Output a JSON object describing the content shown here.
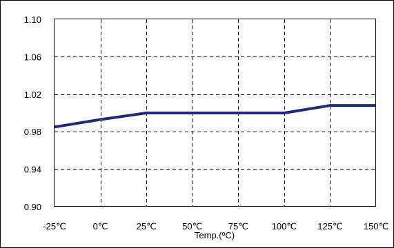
{
  "chart_data": {
    "type": "line",
    "title": "",
    "xlabel": "Temp.(ºC)",
    "ylabel": "",
    "categories": [
      "-25℃",
      "0℃",
      "25℃",
      "50℃",
      "75℃",
      "100℃",
      "125℃",
      "150℃"
    ],
    "x": [
      -25,
      0,
      25,
      50,
      75,
      100,
      125,
      150
    ],
    "xlim": [
      -25,
      150
    ],
    "ylim": [
      0.9,
      1.1
    ],
    "yticks": [
      "0.90",
      "0.94",
      "0.98",
      "1.02",
      "1.06",
      "1.10"
    ],
    "ytick_values": [
      0.9,
      0.94,
      0.98,
      1.02,
      1.06,
      1.1
    ],
    "grid": true,
    "legend": "none",
    "series": [
      {
        "values": [
          0.985,
          0.993,
          1.0,
          1.0,
          1.0,
          1.0,
          1.008,
          1.008
        ],
        "color": "#1f2a7a"
      }
    ]
  }
}
